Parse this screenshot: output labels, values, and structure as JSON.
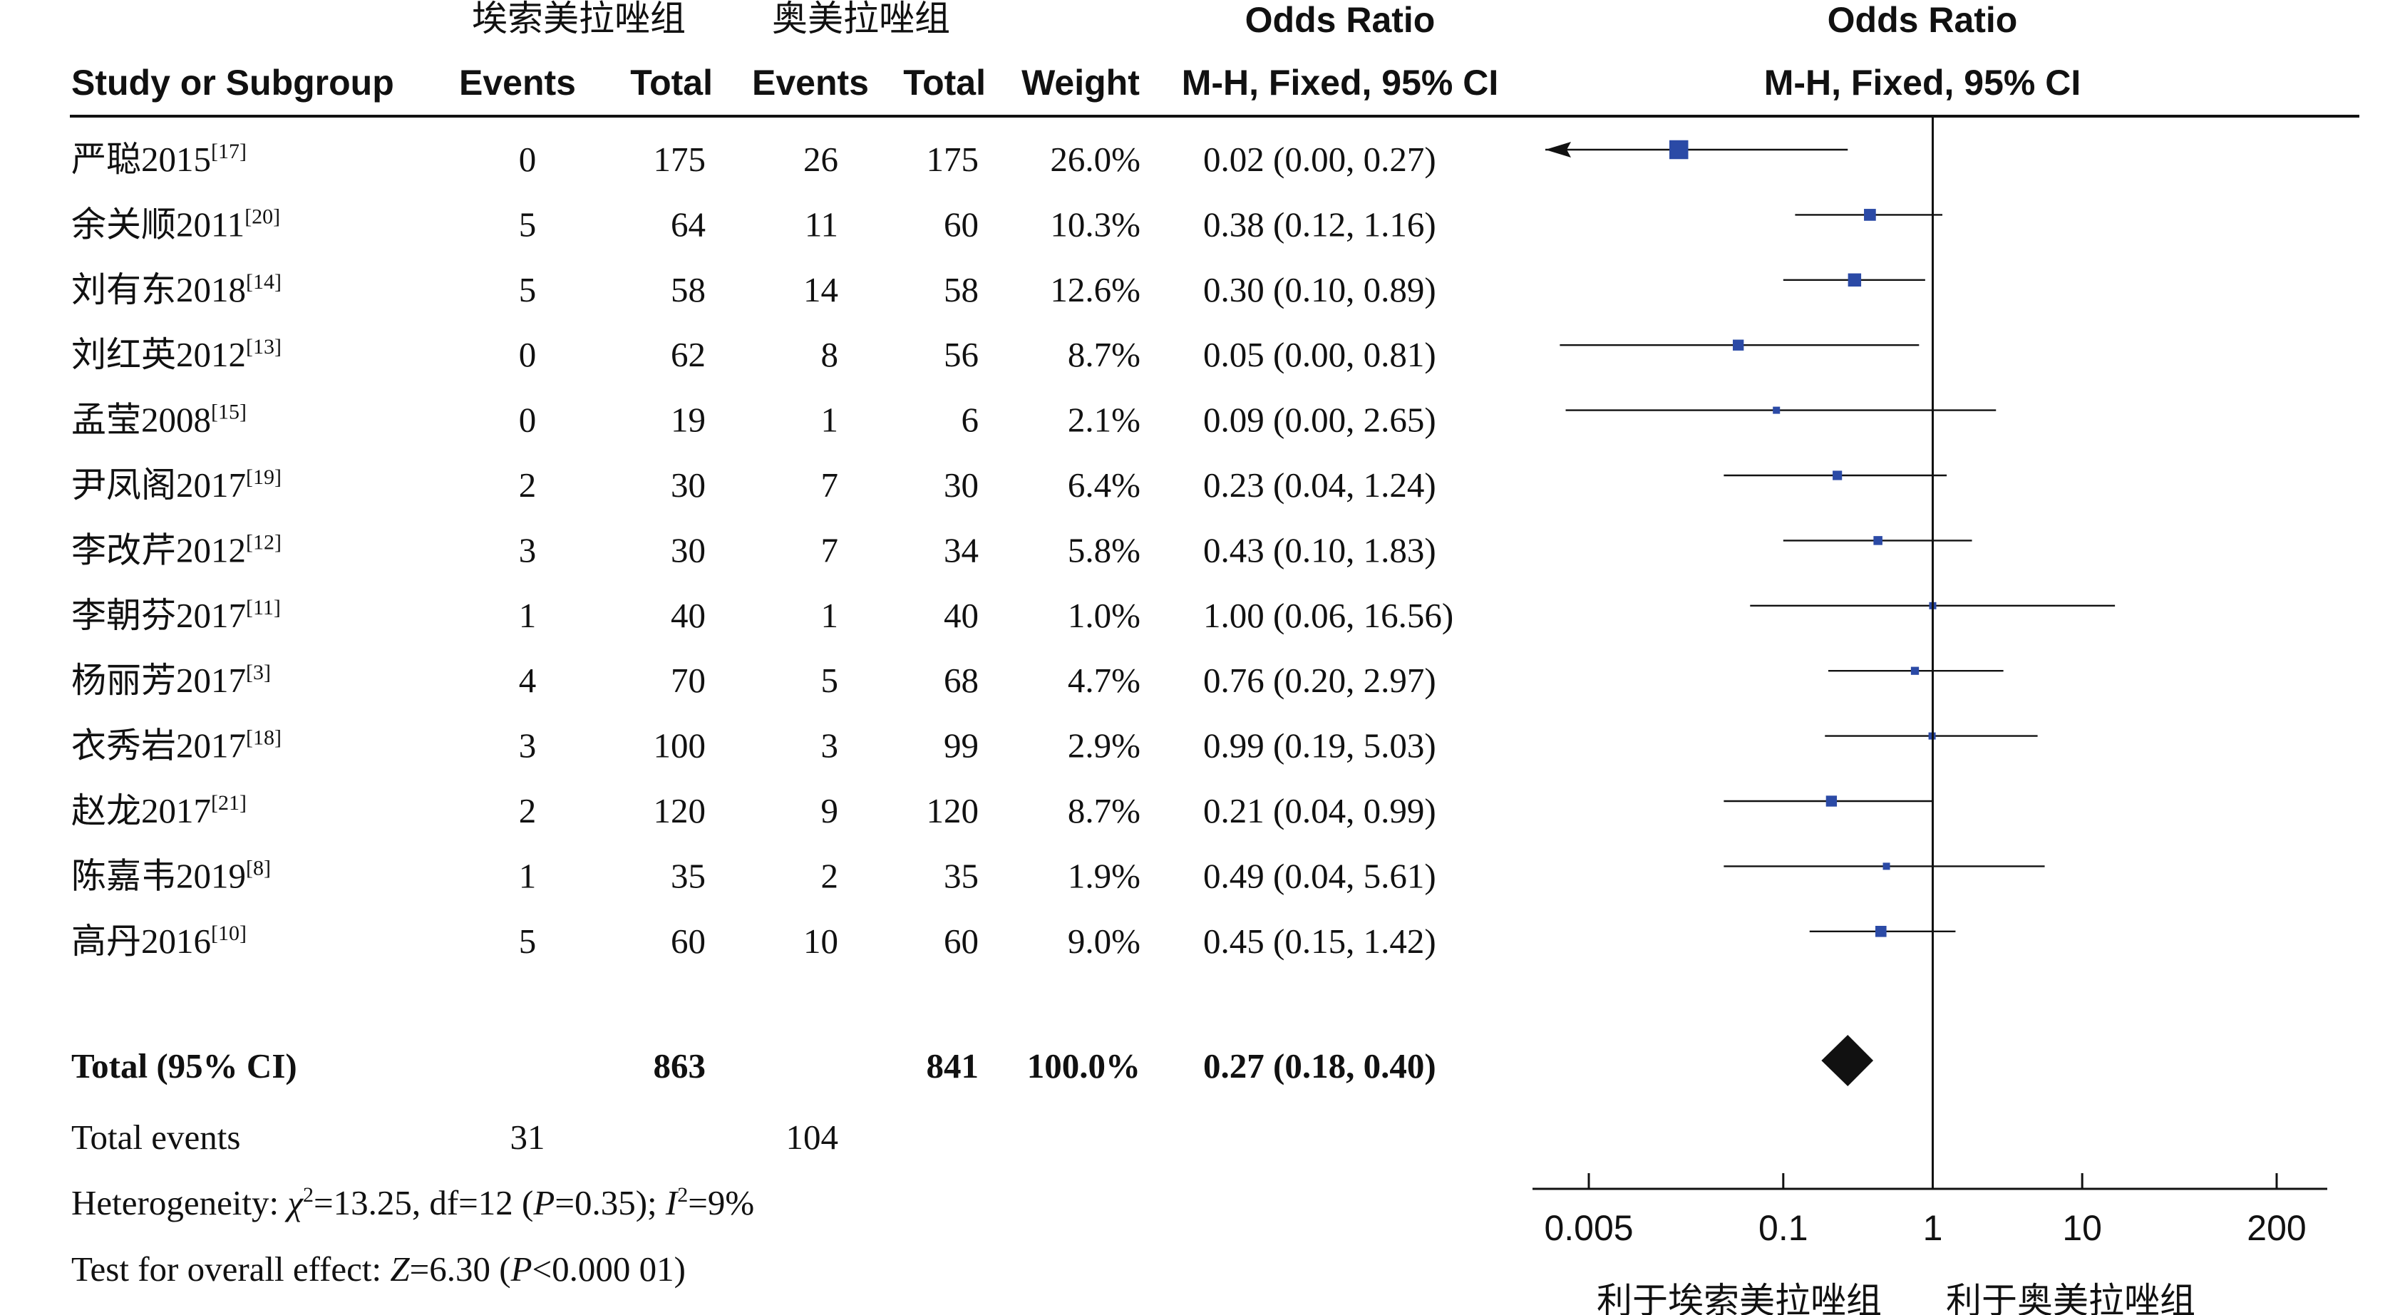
{
  "header": {
    "group1_name": "埃索美拉唑组",
    "group2_name": "奥美拉唑组",
    "or_title_table": "Odds Ratio",
    "or_title_plot": "Odds Ratio",
    "col_study": "Study or Subgroup",
    "col_events1": "Events",
    "col_total1": "Total",
    "col_events2": "Events",
    "col_total2": "Total",
    "col_weight": "Weight",
    "col_ci_table": "M-H, Fixed, 95% CI",
    "col_ci_plot": "M-H, Fixed, 95% CI"
  },
  "chart_data": {
    "type": "forest",
    "x_scale": "log",
    "xlim": [
      0.005,
      200
    ],
    "reference_line": 1,
    "x_ticks": [
      {
        "value": 0.005,
        "label": "0.005"
      },
      {
        "value": 0.1,
        "label": "0.1"
      },
      {
        "value": 1,
        "label": "1"
      },
      {
        "value": 10,
        "label": "10"
      },
      {
        "value": 200,
        "label": "200"
      }
    ],
    "favours_left": "利于埃索美拉唑组",
    "favours_right": "利于奥美拉唑组",
    "studies": [
      {
        "name": "严聪2015",
        "ref": "[17]",
        "events1": "0",
        "total1": "175",
        "events2": "26",
        "total2": "175",
        "weight": "26.0%",
        "ci_text": "0.02 (0.00, 0.27)",
        "or": 0.02,
        "lower": 0.001,
        "upper": 0.27,
        "arrow_left": true
      },
      {
        "name": "余关顺2011",
        "ref": "[20]",
        "events1": "5",
        "total1": "64",
        "events2": "11",
        "total2": "60",
        "weight": "10.3%",
        "ci_text": "0.38 (0.12, 1.16)",
        "or": 0.38,
        "lower": 0.12,
        "upper": 1.16
      },
      {
        "name": "刘有东2018",
        "ref": "[14]",
        "events1": "5",
        "total1": "58",
        "events2": "14",
        "total2": "58",
        "weight": "12.6%",
        "ci_text": "0.30 (0.10, 0.89)",
        "or": 0.3,
        "lower": 0.1,
        "upper": 0.89
      },
      {
        "name": "刘红英2012",
        "ref": "[13]",
        "events1": "0",
        "total1": "62",
        "events2": "8",
        "total2": "56",
        "weight": "8.7%",
        "ci_text": "0.05 (0.00, 0.81)",
        "or": 0.05,
        "lower": 0.0032,
        "upper": 0.81
      },
      {
        "name": "孟莹2008",
        "ref": "[15]",
        "events1": "0",
        "total1": "19",
        "events2": "1",
        "total2": "6",
        "weight": "2.1%",
        "ci_text": "0.09 (0.00, 2.65)",
        "or": 0.09,
        "lower": 0.0035,
        "upper": 2.65
      },
      {
        "name": "尹凤阁2017",
        "ref": "[19]",
        "events1": "2",
        "total1": "30",
        "events2": "7",
        "total2": "30",
        "weight": "6.4%",
        "ci_text": "0.23 (0.04, 1.24)",
        "or": 0.23,
        "lower": 0.04,
        "upper": 1.24
      },
      {
        "name": "李改芹2012",
        "ref": "[12]",
        "events1": "3",
        "total1": "30",
        "events2": "7",
        "total2": "34",
        "weight": "5.8%",
        "ci_text": "0.43 (0.10, 1.83)",
        "or": 0.43,
        "lower": 0.1,
        "upper": 1.83
      },
      {
        "name": "李朝芬2017",
        "ref": "[11]",
        "events1": "1",
        "total1": "40",
        "events2": "1",
        "total2": "40",
        "weight": "1.0%",
        "ci_text": "1.00 (0.06, 16.56)",
        "or": 1.0,
        "lower": 0.06,
        "upper": 16.56
      },
      {
        "name": "杨丽芳2017",
        "ref": "[3]",
        "events1": "4",
        "total1": "70",
        "events2": "5",
        "total2": "68",
        "weight": "4.7%",
        "ci_text": "0.76 (0.20, 2.97)",
        "or": 0.76,
        "lower": 0.2,
        "upper": 2.97
      },
      {
        "name": "衣秀岩2017",
        "ref": "[18]",
        "events1": "3",
        "total1": "100",
        "events2": "3",
        "total2": "99",
        "weight": "2.9%",
        "ci_text": "0.99 (0.19, 5.03)",
        "or": 0.99,
        "lower": 0.19,
        "upper": 5.03
      },
      {
        "name": "赵龙2017",
        "ref": "[21]",
        "events1": "2",
        "total1": "120",
        "events2": "9",
        "total2": "120",
        "weight": "8.7%",
        "ci_text": "0.21 (0.04, 0.99)",
        "or": 0.21,
        "lower": 0.04,
        "upper": 0.99
      },
      {
        "name": "陈嘉韦2019",
        "ref": "[8]",
        "events1": "1",
        "total1": "35",
        "events2": "2",
        "total2": "35",
        "weight": "1.9%",
        "ci_text": "0.49 (0.04, 5.61)",
        "or": 0.49,
        "lower": 0.04,
        "upper": 5.61
      },
      {
        "name": "高丹2016",
        "ref": "[10]",
        "events1": "5",
        "total1": "60",
        "events2": "10",
        "total2": "60",
        "weight": "9.0%",
        "ci_text": "0.45 (0.15, 1.42)",
        "or": 0.45,
        "lower": 0.15,
        "upper": 1.42
      }
    ],
    "total": {
      "label": "Total (95% CI)",
      "total1": "863",
      "total2": "841",
      "weight": "100.0%",
      "ci_text": "0.27 (0.18, 0.40)",
      "or": 0.27,
      "lower": 0.18,
      "upper": 0.4
    },
    "total_events": {
      "label": "Total events",
      "events1": "31",
      "events2": "104"
    },
    "heterogeneity": {
      "prefix": "Heterogeneity: ",
      "chi_symbol": "χ",
      "chi_value": "=13.25, df=12 (",
      "p_symbol": "P",
      "p_value": "=0.35); ",
      "i_symbol": "I",
      "i_value": "=9%"
    },
    "overall_effect": {
      "prefix": "Test for overall effect: ",
      "z_symbol": "Z",
      "z_value": "=6.30 (",
      "p_symbol": "P",
      "p_value": "<0.000 01)"
    },
    "colors": {
      "marker": "#2b4aa6",
      "diamond": "#111111",
      "line": "#111111"
    }
  }
}
